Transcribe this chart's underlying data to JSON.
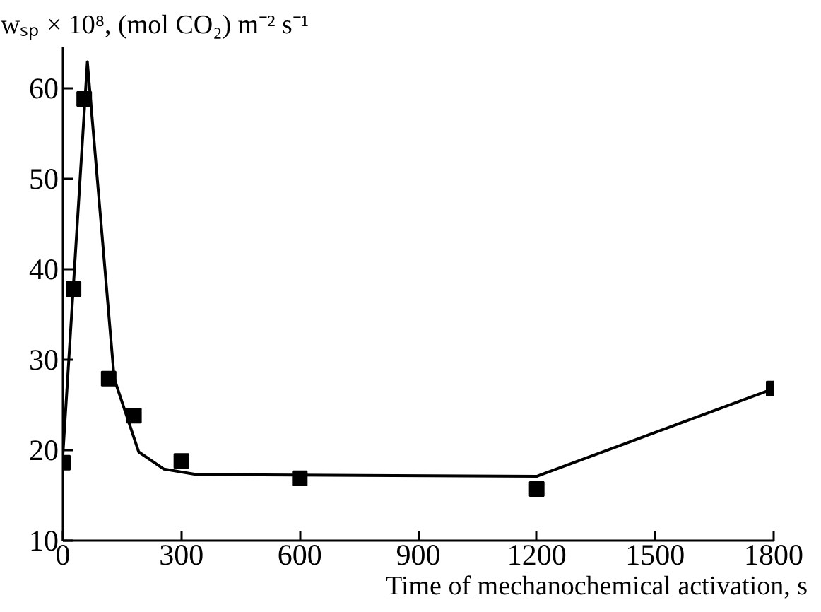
{
  "chart_data": {
    "type": "scatter",
    "ylabel": "wₛₚ × 10⁸, (mol CO₂) m⁻² s⁻¹",
    "xlabel": "Time of mechanochemical activation, s",
    "xlim": [
      0,
      1800
    ],
    "ylim": [
      10,
      64.5
    ],
    "xticks": [
      0,
      300,
      600,
      900,
      1200,
      1500,
      1800
    ],
    "yticks": [
      10,
      20,
      30,
      40,
      50,
      60
    ],
    "grid": false,
    "series": [
      {
        "type": "scatter",
        "marker": "square",
        "color": "#000000",
        "x": [
          0,
          27,
          54,
          116,
          180,
          300,
          600,
          1200,
          1800
        ],
        "values": [
          18.6,
          37.8,
          58.8,
          27.9,
          23.8,
          18.8,
          16.9,
          15.7,
          26.8
        ]
      },
      {
        "type": "line",
        "marker": "none",
        "line_style": "solid",
        "color": "#000000",
        "x": [
          0,
          62,
          130,
          192,
          256,
          339,
          1200,
          1800
        ],
        "values": [
          19.5,
          62.9,
          27.9,
          19.8,
          17.9,
          17.3,
          17.1,
          26.8
        ]
      }
    ]
  }
}
